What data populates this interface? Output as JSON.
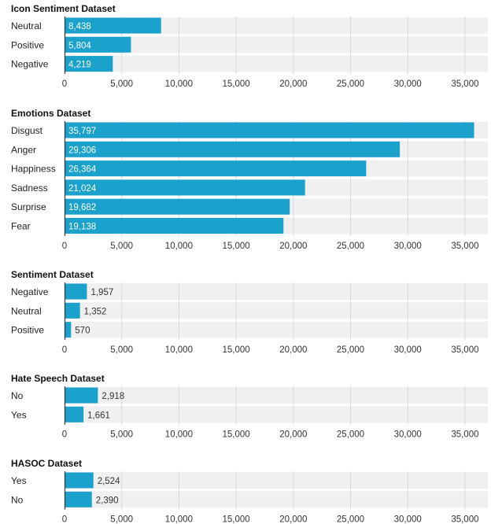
{
  "chart_data": [
    {
      "type": "bar",
      "orientation": "horizontal",
      "title": "Icon Sentiment Dataset",
      "categories": [
        "Neutral",
        "Positive",
        "Negative"
      ],
      "values": [
        8438,
        5804,
        4219
      ],
      "value_labels": [
        "8,438",
        "5,804",
        "4,219"
      ],
      "xlim": [
        0,
        37000
      ],
      "ticks": [
        0,
        5000,
        10000,
        15000,
        20000,
        25000,
        30000,
        35000
      ],
      "tick_labels": [
        "0",
        "5,000",
        "10,000",
        "15,000",
        "20,000",
        "25,000",
        "30,000",
        "35,000"
      ],
      "grid": true
    },
    {
      "type": "bar",
      "orientation": "horizontal",
      "title": "Emotions Dataset",
      "categories": [
        "Disgust",
        "Anger",
        "Happiness",
        "Sadness",
        "Surprise",
        "Fear"
      ],
      "values": [
        35797,
        29306,
        26364,
        21024,
        19682,
        19138
      ],
      "value_labels": [
        "35,797",
        "29,306",
        "26,364",
        "21,024",
        "19,682",
        "19,138"
      ],
      "xlim": [
        0,
        37000
      ],
      "ticks": [
        0,
        5000,
        10000,
        15000,
        20000,
        25000,
        30000,
        35000
      ],
      "tick_labels": [
        "0",
        "5,000",
        "10,000",
        "15,000",
        "20,000",
        "25,000",
        "30,000",
        "35,000"
      ],
      "grid": true
    },
    {
      "type": "bar",
      "orientation": "horizontal",
      "title": "Sentiment Dataset",
      "categories": [
        "Negative",
        "Neutral",
        "Positive"
      ],
      "values": [
        1957,
        1352,
        570
      ],
      "value_labels": [
        "1,957",
        "1,352",
        "570"
      ],
      "xlim": [
        0,
        37000
      ],
      "ticks": [
        0,
        5000,
        10000,
        15000,
        20000,
        25000,
        30000,
        35000
      ],
      "tick_labels": [
        "0",
        "5,000",
        "10,000",
        "15,000",
        "20,000",
        "25,000",
        "30,000",
        "35,000"
      ],
      "grid": true
    },
    {
      "type": "bar",
      "orientation": "horizontal",
      "title": "Hate Speech Dataset",
      "categories": [
        "No",
        "Yes"
      ],
      "values": [
        2918,
        1661
      ],
      "value_labels": [
        "2,918",
        "1,661"
      ],
      "xlim": [
        0,
        37000
      ],
      "ticks": [
        0,
        5000,
        10000,
        15000,
        20000,
        25000,
        30000,
        35000
      ],
      "tick_labels": [
        "0",
        "5,000",
        "10,000",
        "15,000",
        "20,000",
        "25,000",
        "30,000",
        "35,000"
      ],
      "grid": true
    },
    {
      "type": "bar",
      "orientation": "horizontal",
      "title": "HASOC Dataset",
      "categories": [
        "Yes",
        "No"
      ],
      "values": [
        2524,
        2390
      ],
      "value_labels": [
        "2,524",
        "2,390"
      ],
      "xlim": [
        0,
        37000
      ],
      "ticks": [
        0,
        5000,
        10000,
        15000,
        20000,
        25000,
        30000,
        35000
      ],
      "tick_labels": [
        "0",
        "5,000",
        "10,000",
        "15,000",
        "20,000",
        "25,000",
        "30,000",
        "35,000"
      ],
      "grid": true
    }
  ],
  "colors": {
    "bar": "#1aa1cc",
    "row_background": "#f0f0f0",
    "grid": "#d8d8d8",
    "axis": "#333333"
  }
}
